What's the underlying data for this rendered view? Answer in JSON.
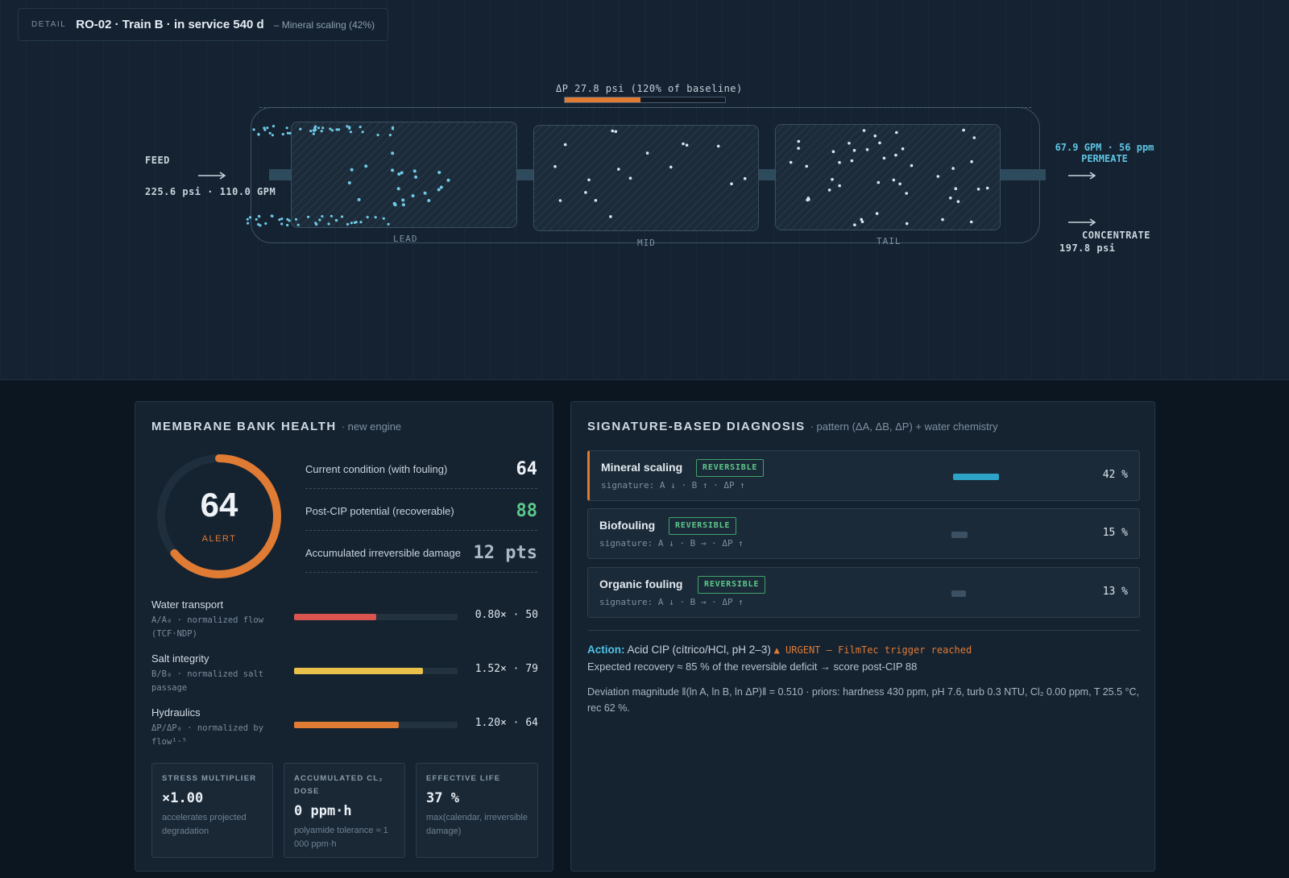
{
  "detail": {
    "tag": "DETAIL",
    "title": "RO-02 · Train B · in service 540 d",
    "subtitle": "– Mineral scaling (42%)"
  },
  "schematic": {
    "feed_label": "FEED",
    "feed_values": "225.6 psi · 110.0 GPM",
    "permeate_values": "67.9 GPM · 56 ppm",
    "permeate_label": "PERMEATE",
    "concentrate_label": "CONCENTRATE",
    "concentrate_values": "197.8 psi",
    "dp_label": "ΔP 27.8 psi (120% of baseline)",
    "dp_fraction": 0.47,
    "elements": [
      "LEAD",
      "MID",
      "TAIL"
    ],
    "colors": {
      "scale": "#6fcae6",
      "deposit": "#dbe5ee",
      "dp": "#e07b34"
    }
  },
  "health": {
    "title": "MEMBRANE BANK HEALTH",
    "subtitle": "· new engine",
    "score": "64",
    "score_fraction": 0.64,
    "status": "ALERT",
    "conditions": [
      {
        "label": "Current condition (with fouling)",
        "value": "64",
        "color": "#eef3f7"
      },
      {
        "label": "Post-CIP potential (recoverable)",
        "value": "88",
        "color": "#5cc98a"
      },
      {
        "label": "Accumulated irreversible damage",
        "value": "12 pts",
        "color": "#aab8c4"
      }
    ],
    "metrics": [
      {
        "name": "Water transport",
        "desc": "A/A₀ · normalized flow (TCF·NDP)",
        "value": "0.80× · 50",
        "fraction": 0.5,
        "color": "#d9534f"
      },
      {
        "name": "Salt integrity",
        "desc": "B/B₀ · normalized salt passage",
        "value": "1.52× · 79",
        "fraction": 0.79,
        "color": "#e8c04a"
      },
      {
        "name": "Hydraulics",
        "desc": "ΔP/ΔP₀ · normalized by flow¹·⁵",
        "value": "1.20× · 64",
        "fraction": 0.64,
        "color": "#e07b34"
      }
    ],
    "cards": [
      {
        "title": "STRESS MULTIPLIER",
        "value": "×1.00",
        "desc": "accelerates projected degradation"
      },
      {
        "title": "ACCUMULATED CL₂ DOSE",
        "value": "0 ppm·h",
        "desc": "polyamide tolerance ≈ 1 000 ppm·h"
      },
      {
        "title": "EFFECTIVE LIFE",
        "value": "37 %",
        "desc": "max(calendar, irreversible damage)"
      }
    ]
  },
  "diagnosis": {
    "title": "SIGNATURE-BASED DIAGNOSIS",
    "subtitle": "· pattern (ΔA, ΔB, ΔP) + water chemistry",
    "items": [
      {
        "name": "Mineral scaling",
        "badge": "REVERSIBLE",
        "signature": "signature: A ↓ · B ↑ · ΔP ↑",
        "pct": "42 %",
        "fraction": 0.42,
        "color": "#2ea3c8"
      },
      {
        "name": "Biofouling",
        "badge": "REVERSIBLE",
        "signature": "signature: A ↓ · B → · ΔP ↑",
        "pct": "15 %",
        "fraction": 0.15,
        "color": "#3b5063"
      },
      {
        "name": "Organic fouling",
        "badge": "REVERSIBLE",
        "signature": "signature: A ↓ · B → · ΔP ↑",
        "pct": "13 %",
        "fraction": 0.13,
        "color": "#3b5063"
      }
    ],
    "action_key": "Action:",
    "action_text": "Acid CIP (cítrico/HCl, pH 2–3)",
    "urgent": "▲ URGENT — FilmTec trigger reached",
    "recovery": "Expected recovery ≈ 85 % of the reversible deficit → score post-CIP 88",
    "deviation": "Deviation magnitude ‖(ln A, ln B, ln ΔP)‖ = 0.510 · priors: hardness 430 ppm, pH 7.6, turb 0.3 NTU, Cl₂ 0.00 ppm, T 25.5 °C, rec 62 %."
  }
}
